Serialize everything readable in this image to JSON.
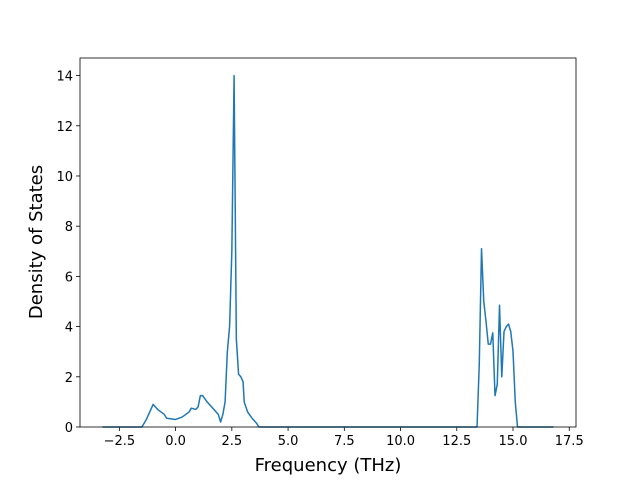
{
  "chart_data": {
    "type": "line",
    "x_label": "Frequency (THz)",
    "y_label": "Density of States",
    "x": [
      -3.25,
      -1.5,
      -1.3,
      -1.0,
      -0.8,
      -0.5,
      -0.4,
      0,
      0.3,
      0.6,
      0.7,
      0.9,
      1.0,
      1.1,
      1.2,
      1.4,
      1.7,
      1.9,
      2.0,
      2.1,
      2.2,
      2.3,
      2.4,
      2.5,
      2.6,
      2.7,
      2.8,
      2.9,
      3.0,
      3.05,
      3.2,
      3.4,
      3.6,
      3.7,
      13.4,
      13.5,
      13.6,
      13.7,
      13.8,
      13.9,
      14.0,
      14.1,
      14.2,
      14.3,
      14.4,
      14.5,
      14.6,
      14.7,
      14.8,
      14.9,
      15.0,
      15.1,
      15.2,
      16.8
    ],
    "y": [
      0,
      0,
      0.3,
      0.9,
      0.7,
      0.5,
      0.35,
      0.3,
      0.4,
      0.6,
      0.75,
      0.7,
      0.8,
      1.25,
      1.25,
      1.0,
      0.7,
      0.5,
      0.2,
      0.5,
      1.0,
      3.0,
      4.0,
      7.0,
      14.0,
      3.5,
      2.1,
      2.0,
      1.8,
      1.0,
      0.6,
      0.35,
      0.15,
      0,
      0,
      2.5,
      7.1,
      5.0,
      4.2,
      3.3,
      3.3,
      3.75,
      1.25,
      1.7,
      4.85,
      2.0,
      3.8,
      4.0,
      4.1,
      3.8,
      3.0,
      1.0,
      0,
      0
    ],
    "color": "#1f77b4",
    "xlim": [
      -4.25,
      17.8
    ],
    "xticks": [
      {
        "value": -2.5,
        "label": "−2.5"
      },
      {
        "value": 0,
        "label": "0.0"
      },
      2.5,
      {
        "value": 5,
        "label": "5.0"
      },
      7.5,
      {
        "value": 10,
        "label": "10.0"
      },
      12.5,
      {
        "value": 15,
        "label": "15.0"
      },
      17.5
    ],
    "ylim": [
      0,
      14.7
    ],
    "yticks": [
      0,
      2,
      4,
      6,
      8,
      10,
      12,
      14
    ]
  }
}
